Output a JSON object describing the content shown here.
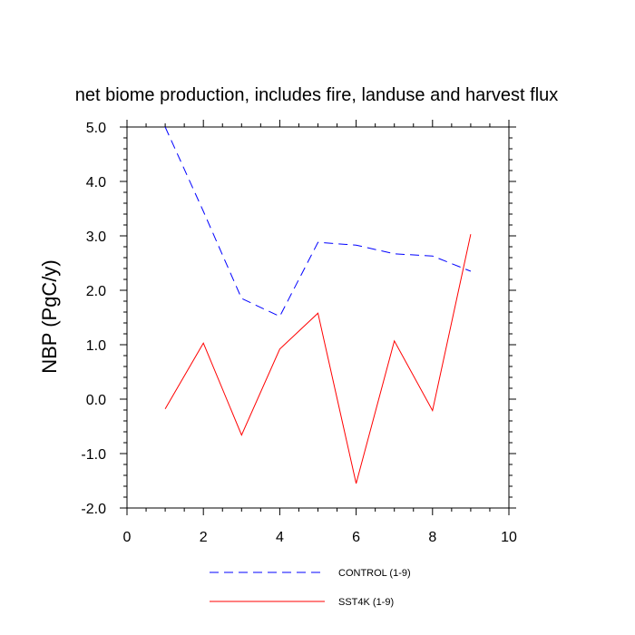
{
  "chart_data": {
    "type": "line",
    "title": "net biome production, includes fire, landuse and harvest flux",
    "xlabel": "",
    "ylabel": "NBP  (PgC/y)",
    "xlim": [
      0,
      10
    ],
    "ylim": [
      -2.0,
      5.0
    ],
    "xticks": [
      0,
      2,
      4,
      6,
      8,
      10
    ],
    "xtick_labels": [
      "0",
      "2",
      "4",
      "6",
      "8",
      "10"
    ],
    "yticks": [
      -2.0,
      -1.0,
      0.0,
      1.0,
      2.0,
      3.0,
      4.0,
      5.0
    ],
    "ytick_labels": [
      "-2.0",
      "-1.0",
      "0.0",
      "1.0",
      "2.0",
      "3.0",
      "4.0",
      "5.0"
    ],
    "grid": false,
    "legend_position": "bottom",
    "series": [
      {
        "name": "CONTROL (1-9)",
        "color": "#0000ff",
        "dash": true,
        "x": [
          1,
          2,
          3,
          4,
          5,
          6,
          7,
          8,
          9
        ],
        "y": [
          5.0,
          3.45,
          1.85,
          1.52,
          2.88,
          2.83,
          2.67,
          2.63,
          2.35
        ]
      },
      {
        "name": "SST4K (1-9)",
        "color": "#ff0000",
        "dash": false,
        "x": [
          1,
          2,
          3,
          4,
          5,
          6,
          7,
          8,
          9
        ],
        "y": [
          -0.18,
          1.03,
          -0.66,
          0.92,
          1.58,
          -1.55,
          1.07,
          -0.21,
          3.03
        ]
      }
    ]
  }
}
